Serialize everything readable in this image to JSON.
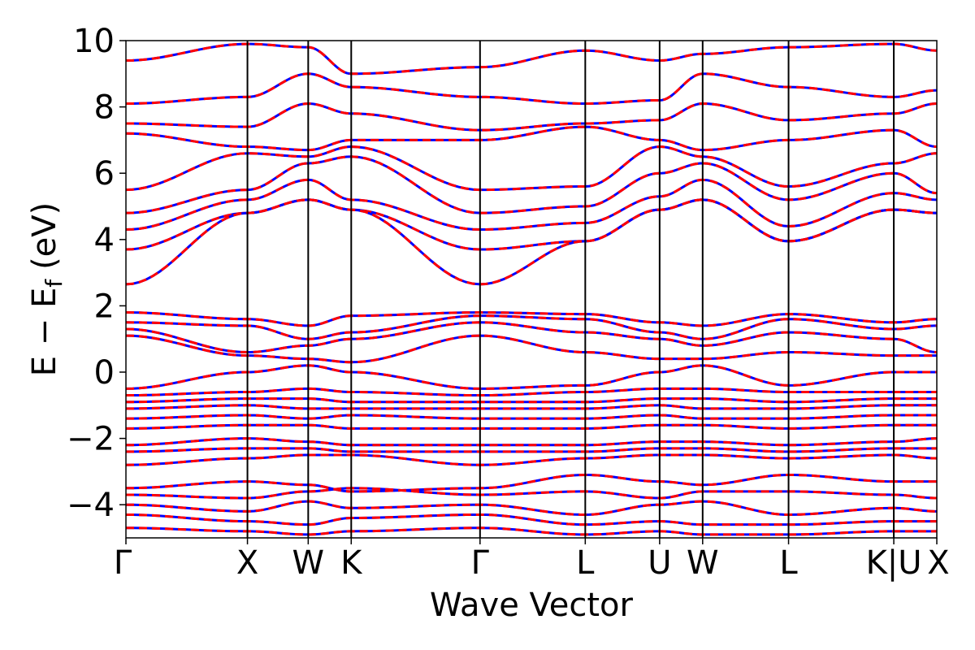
{
  "chart_data": {
    "type": "line",
    "title": "",
    "xlabel": "Wave Vector",
    "ylabel": "E − E",
    "ylabel_subscript": "f",
    "ylabel_unit": "(eV)",
    "ylim": [
      -5,
      10
    ],
    "y_ticks": [
      -4,
      -2,
      0,
      2,
      4,
      6,
      8,
      10
    ],
    "y_tick_labels": [
      "−4",
      "−2",
      "0",
      "2",
      "4",
      "6",
      "8",
      "10"
    ],
    "x_high_symmetry": [
      {
        "label": "Γ",
        "x": 0
      },
      {
        "label": "X",
        "x": 1.0
      },
      {
        "label": "W",
        "x": 1.5
      },
      {
        "label": "K",
        "x": 1.854
      },
      {
        "label": "Γ",
        "x": 2.914
      },
      {
        "label": "L",
        "x": 3.78
      },
      {
        "label": "U",
        "x": 4.392
      },
      {
        "label": "W",
        "x": 4.746
      },
      {
        "label": "L",
        "x": 5.453
      },
      {
        "label": "K|U",
        "x": 6.319
      },
      {
        "label": "X",
        "x": 6.673
      }
    ],
    "xlim": [
      0,
      6.673
    ],
    "vertical_lines": true,
    "series_styles": [
      {
        "color": "#0000ff",
        "style": "solid"
      },
      {
        "color": "#ff0000",
        "style": "dashed"
      }
    ],
    "bands": [
      [
        9.4,
        9.9,
        9.8,
        9.0,
        9.2,
        9.7,
        9.4,
        9.6,
        9.8,
        9.9,
        9.7
      ],
      [
        8.1,
        8.3,
        9.0,
        8.6,
        8.3,
        8.1,
        8.2,
        9.0,
        8.6,
        8.3,
        8.5
      ],
      [
        7.5,
        7.4,
        8.1,
        7.8,
        7.3,
        7.5,
        7.6,
        8.1,
        7.6,
        7.8,
        8.1
      ],
      [
        7.2,
        6.8,
        6.7,
        7.0,
        7.0,
        7.4,
        7.0,
        6.7,
        7.0,
        7.3,
        6.8
      ],
      [
        5.5,
        6.6,
        6.5,
        6.8,
        5.5,
        5.6,
        6.8,
        6.5,
        5.6,
        6.3,
        6.6
      ],
      [
        4.8,
        5.5,
        6.3,
        6.5,
        4.8,
        5.0,
        6.0,
        6.3,
        5.2,
        6.0,
        5.4
      ],
      [
        4.3,
        5.2,
        5.8,
        5.2,
        4.3,
        4.5,
        5.3,
        5.8,
        4.4,
        5.4,
        5.2
      ],
      [
        3.7,
        4.8,
        5.2,
        4.9,
        3.7,
        3.95,
        4.9,
        5.2,
        3.95,
        4.9,
        4.8
      ],
      [
        2.65,
        4.8,
        5.2,
        4.9,
        2.65,
        3.95,
        4.9,
        5.2,
        3.95,
        4.9,
        4.8
      ],
      [
        1.8,
        1.6,
        1.4,
        1.7,
        1.8,
        1.75,
        1.5,
        1.4,
        1.75,
        1.5,
        1.6
      ],
      [
        1.5,
        1.4,
        1.0,
        1.2,
        1.7,
        1.6,
        1.2,
        1.0,
        1.6,
        1.3,
        1.4
      ],
      [
        1.3,
        0.6,
        0.8,
        1.0,
        1.5,
        1.2,
        1.0,
        0.8,
        1.2,
        1.0,
        0.6
      ],
      [
        1.1,
        0.5,
        0.4,
        0.3,
        1.1,
        0.6,
        0.4,
        0.4,
        0.6,
        0.5,
        0.5
      ],
      [
        -0.5,
        0.0,
        0.2,
        0.0,
        -0.5,
        -0.4,
        0.0,
        0.2,
        -0.4,
        0.0,
        0.0
      ],
      [
        -0.7,
        -0.6,
        -0.5,
        -0.6,
        -0.7,
        -0.6,
        -0.5,
        -0.5,
        -0.6,
        -0.6,
        -0.6
      ],
      [
        -0.9,
        -0.8,
        -0.8,
        -0.9,
        -0.9,
        -0.9,
        -0.8,
        -0.8,
        -0.9,
        -0.8,
        -0.8
      ],
      [
        -1.1,
        -1.0,
        -1.1,
        -1.1,
        -1.1,
        -1.1,
        -1.0,
        -1.1,
        -1.1,
        -1.0,
        -1.0
      ],
      [
        -1.4,
        -1.3,
        -1.4,
        -1.3,
        -1.4,
        -1.4,
        -1.3,
        -1.4,
        -1.4,
        -1.3,
        -1.3
      ],
      [
        -1.7,
        -1.6,
        -1.6,
        -1.7,
        -1.7,
        -1.7,
        -1.6,
        -1.6,
        -1.7,
        -1.6,
        -1.6
      ],
      [
        -2.2,
        -2.0,
        -2.1,
        -2.2,
        -2.2,
        -2.2,
        -2.1,
        -2.1,
        -2.2,
        -2.1,
        -2.0
      ],
      [
        -2.4,
        -2.3,
        -2.3,
        -2.4,
        -2.4,
        -2.4,
        -2.3,
        -2.3,
        -2.4,
        -2.3,
        -2.3
      ],
      [
        -2.8,
        -2.6,
        -2.5,
        -2.5,
        -2.8,
        -2.6,
        -2.5,
        -2.5,
        -2.6,
        -2.5,
        -2.6
      ],
      [
        -3.5,
        -3.3,
        -3.4,
        -3.6,
        -3.5,
        -3.1,
        -3.3,
        -3.4,
        -3.1,
        -3.3,
        -3.3
      ],
      [
        -3.7,
        -3.8,
        -3.6,
        -3.5,
        -3.7,
        -3.6,
        -3.8,
        -3.6,
        -3.6,
        -3.7,
        -3.8
      ],
      [
        -4.0,
        -4.2,
        -3.9,
        -4.1,
        -4.0,
        -4.3,
        -4.0,
        -3.9,
        -4.3,
        -4.1,
        -4.2
      ],
      [
        -4.3,
        -4.5,
        -4.6,
        -4.4,
        -4.3,
        -4.6,
        -4.5,
        -4.6,
        -4.6,
        -4.5,
        -4.5
      ],
      [
        -4.7,
        -4.8,
        -4.9,
        -4.8,
        -4.7,
        -4.9,
        -4.8,
        -4.9,
        -4.9,
        -4.8,
        -4.8
      ]
    ]
  }
}
